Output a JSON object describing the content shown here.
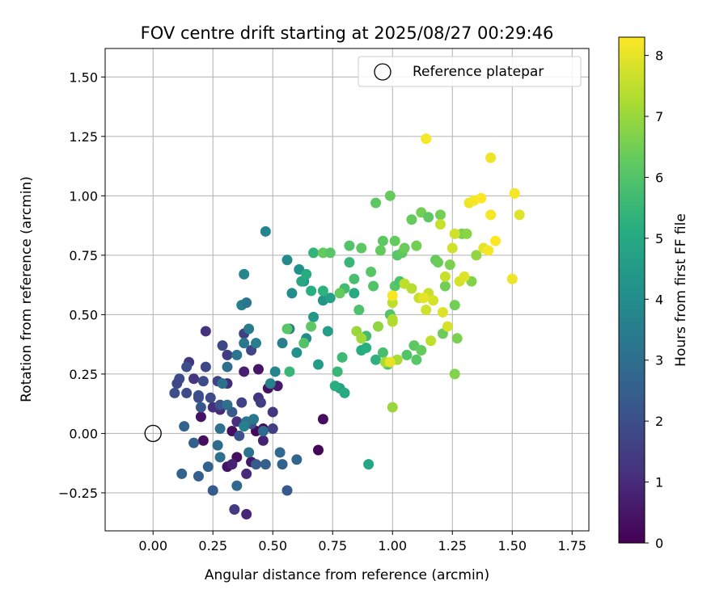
{
  "chart_data": {
    "type": "scatter",
    "title": "FOV centre drift starting at 2025/08/27 00:29:46",
    "xlabel": "Angular distance from reference (arcmin)",
    "ylabel": "Rotation from reference (arcmin)",
    "xlim": [
      -0.2,
      1.82
    ],
    "ylim": [
      -0.41,
      1.62
    ],
    "xticks": [
      0.0,
      0.25,
      0.5,
      0.75,
      1.0,
      1.25,
      1.5,
      1.75
    ],
    "xtick_labels": [
      "0.00",
      "0.25",
      "0.50",
      "0.75",
      "1.00",
      "1.25",
      "1.50",
      "1.75"
    ],
    "yticks": [
      -0.25,
      0.0,
      0.25,
      0.5,
      0.75,
      1.0,
      1.25,
      1.5
    ],
    "ytick_labels": [
      "−0.25",
      "0.00",
      "0.25",
      "0.50",
      "0.75",
      "1.00",
      "1.25",
      "1.50"
    ],
    "grid": true,
    "colormap": "viridis",
    "colorbar": {
      "label": "Hours from first FF file",
      "range": [
        0,
        8.3
      ],
      "ticks": [
        0,
        1,
        2,
        3,
        4,
        5,
        6,
        7,
        8
      ],
      "tick_labels": [
        "0",
        "1",
        "2",
        "3",
        "4",
        "5",
        "6",
        "7",
        "8"
      ]
    },
    "legend": {
      "placement": "top-right",
      "entries": [
        {
          "label": "Reference platepar",
          "marker": "open-circle"
        }
      ]
    },
    "reference_point": {
      "x": 0.0,
      "y": 0.0
    },
    "points": [
      [
        0.69,
        -0.07,
        0.1
      ],
      [
        0.71,
        0.06,
        0.3
      ],
      [
        0.48,
        0.19,
        0.4
      ],
      [
        0.46,
        0.02,
        0.3
      ],
      [
        0.43,
        0.01,
        0.2
      ],
      [
        0.41,
        -0.12,
        0.5
      ],
      [
        0.35,
        -0.1,
        0.3
      ],
      [
        0.33,
        0.01,
        0.3
      ],
      [
        0.31,
        -0.14,
        0.4
      ],
      [
        0.38,
        0.26,
        0.7
      ],
      [
        0.52,
        0.2,
        0.6
      ],
      [
        0.21,
        -0.03,
        0.3
      ],
      [
        0.2,
        0.07,
        0.4
      ],
      [
        0.44,
        0.27,
        0.5
      ],
      [
        0.46,
        -0.03,
        0.8
      ],
      [
        0.39,
        -0.34,
        0.9
      ],
      [
        0.39,
        -0.17,
        1.0
      ],
      [
        0.33,
        -0.13,
        0.8
      ],
      [
        0.28,
        0.1,
        1.0
      ],
      [
        0.31,
        0.21,
        1.0
      ],
      [
        0.25,
        0.11,
        1.1
      ],
      [
        0.35,
        0.05,
        1.1
      ],
      [
        0.44,
        0.15,
        1.2
      ],
      [
        0.5,
        0.09,
        1.3
      ],
      [
        0.22,
        0.43,
        1.2
      ],
      [
        0.17,
        0.23,
        1.3
      ],
      [
        0.15,
        0.3,
        1.3
      ],
      [
        0.34,
        -0.32,
        1.4
      ],
      [
        0.5,
        0.02,
        1.6
      ],
      [
        0.45,
        0.13,
        1.5
      ],
      [
        0.31,
        0.33,
        1.5
      ],
      [
        0.38,
        0.42,
        1.6
      ],
      [
        0.41,
        0.35,
        1.7
      ],
      [
        0.29,
        0.37,
        1.8
      ],
      [
        0.37,
        0.13,
        1.6
      ],
      [
        0.27,
        0.22,
        1.7
      ],
      [
        0.24,
        0.15,
        1.9
      ],
      [
        0.21,
        0.22,
        1.9
      ],
      [
        0.11,
        0.23,
        1.9
      ],
      [
        0.1,
        0.21,
        1.8
      ],
      [
        0.14,
        0.28,
        2.0
      ],
      [
        0.22,
        0.28,
        1.8
      ],
      [
        0.09,
        0.17,
        2.0
      ],
      [
        0.14,
        0.17,
        1.9
      ],
      [
        0.19,
        0.16,
        2.1
      ],
      [
        0.19,
        0.15,
        2.0
      ],
      [
        0.2,
        0.11,
        2.2
      ],
      [
        0.28,
        0.12,
        2.1
      ],
      [
        0.33,
        0.09,
        2.3
      ],
      [
        0.36,
        -0.01,
        2.1
      ],
      [
        0.41,
        0.04,
        2.2
      ],
      [
        0.43,
        -0.13,
        2.4
      ],
      [
        0.47,
        -0.13,
        2.5
      ],
      [
        0.56,
        -0.24,
        2.3
      ],
      [
        0.54,
        -0.13,
        2.6
      ],
      [
        0.6,
        -0.11,
        2.7
      ],
      [
        0.53,
        -0.08,
        2.8
      ],
      [
        0.46,
        0.01,
        2.9
      ],
      [
        0.25,
        -0.24,
        2.4
      ],
      [
        0.17,
        -0.04,
        2.5
      ],
      [
        0.13,
        0.03,
        2.7
      ],
      [
        0.12,
        -0.17,
        2.6
      ],
      [
        0.19,
        -0.18,
        2.5
      ],
      [
        0.23,
        -0.14,
        2.6
      ],
      [
        0.27,
        -0.05,
        2.9
      ],
      [
        0.28,
        -0.1,
        3.0
      ],
      [
        0.28,
        0.02,
        3.0
      ],
      [
        0.35,
        -0.22,
        2.8
      ],
      [
        0.4,
        -0.08,
        3.1
      ],
      [
        0.39,
        0.05,
        3.2
      ],
      [
        0.42,
        0.06,
        3.3
      ],
      [
        0.38,
        0.03,
        3.6
      ],
      [
        0.31,
        0.12,
        3.0
      ],
      [
        0.29,
        0.21,
        3.1
      ],
      [
        0.31,
        0.28,
        3.0
      ],
      [
        0.35,
        0.33,
        3.2
      ],
      [
        0.38,
        0.38,
        3.3
      ],
      [
        0.4,
        0.44,
        3.4
      ],
      [
        0.43,
        0.38,
        3.5
      ],
      [
        0.37,
        0.54,
        3.6
      ],
      [
        0.39,
        0.55,
        3.2
      ],
      [
        0.38,
        0.67,
        3.8
      ],
      [
        0.47,
        0.85,
        3.7
      ],
      [
        0.49,
        0.21,
        3.6
      ],
      [
        0.51,
        0.26,
        3.7
      ],
      [
        0.54,
        0.38,
        3.5
      ],
      [
        0.57,
        0.44,
        3.4
      ],
      [
        0.56,
        0.73,
        3.9
      ],
      [
        0.58,
        0.59,
        4.0
      ],
      [
        0.6,
        0.34,
        4.1
      ],
      [
        0.61,
        0.69,
        4.2
      ],
      [
        0.63,
        0.64,
        4.3
      ],
      [
        0.64,
        0.4,
        4.0
      ],
      [
        0.67,
        0.49,
        4.4
      ],
      [
        0.69,
        0.29,
        4.5
      ],
      [
        0.71,
        0.56,
        4.3
      ],
      [
        0.73,
        0.43,
        4.6
      ],
      [
        0.74,
        0.57,
        4.7
      ],
      [
        0.78,
        0.19,
        4.8
      ],
      [
        0.8,
        0.17,
        5.0
      ],
      [
        0.84,
        0.59,
        5.0
      ],
      [
        0.9,
        -0.13,
        4.9
      ],
      [
        0.87,
        0.35,
        5.1
      ],
      [
        0.89,
        0.36,
        5.2
      ],
      [
        0.93,
        0.31,
        5.3
      ],
      [
        0.62,
        0.64,
        4.9
      ],
      [
        0.64,
        0.67,
        5.1
      ],
      [
        0.66,
        0.6,
        5.2
      ],
      [
        0.67,
        0.76,
        5.4
      ],
      [
        0.71,
        0.6,
        5.3
      ],
      [
        0.76,
        0.2,
        5.2
      ],
      [
        0.77,
        0.26,
        5.5
      ],
      [
        0.79,
        0.32,
        5.6
      ],
      [
        0.8,
        0.61,
        5.7
      ],
      [
        0.82,
        0.72,
        5.5
      ],
      [
        0.84,
        0.65,
        5.8
      ],
      [
        0.86,
        0.52,
        5.9
      ],
      [
        0.89,
        0.41,
        5.7
      ],
      [
        0.92,
        0.62,
        6.0
      ],
      [
        0.96,
        0.34,
        5.8
      ],
      [
        0.98,
        0.29,
        5.9
      ],
      [
        0.99,
        0.5,
        6.0
      ],
      [
        1.01,
        0.62,
        6.1
      ],
      [
        1.03,
        0.64,
        5.9
      ],
      [
        1.06,
        0.33,
        6.0
      ],
      [
        1.09,
        0.37,
        6.2
      ],
      [
        1.1,
        0.31,
        6.1
      ],
      [
        1.12,
        0.35,
        6.3
      ],
      [
        0.57,
        0.26,
        5.5
      ],
      [
        0.56,
        0.44,
        6.1
      ],
      [
        0.63,
        0.38,
        6.0
      ],
      [
        0.66,
        0.45,
        6.2
      ],
      [
        0.71,
        0.76,
        6.3
      ],
      [
        0.74,
        0.76,
        6.1
      ],
      [
        0.78,
        0.59,
        6.3
      ],
      [
        0.82,
        0.79,
        6.0
      ],
      [
        0.87,
        0.78,
        6.2
      ],
      [
        0.91,
        0.68,
        6.1
      ],
      [
        0.93,
        0.97,
        6.2
      ],
      [
        0.95,
        0.77,
        6.3
      ],
      [
        0.96,
        0.81,
        6.2
      ],
      [
        0.99,
        1.0,
        6.3
      ],
      [
        1.01,
        0.81,
        6.3
      ],
      [
        1.02,
        0.75,
        6.1
      ],
      [
        1.04,
        0.76,
        6.2
      ],
      [
        1.05,
        0.78,
        6.4
      ],
      [
        1.08,
        0.9,
        6.3
      ],
      [
        1.1,
        0.79,
        6.5
      ],
      [
        1.12,
        0.93,
        6.5
      ],
      [
        1.15,
        0.91,
        6.2
      ],
      [
        1.18,
        0.73,
        6.3
      ],
      [
        1.19,
        0.72,
        6.4
      ],
      [
        1.2,
        0.92,
        6.5
      ],
      [
        1.21,
        0.42,
        6.4
      ],
      [
        1.22,
        0.62,
        6.5
      ],
      [
        1.24,
        0.71,
        6.6
      ],
      [
        1.26,
        0.54,
        6.5
      ],
      [
        1.27,
        0.4,
        6.6
      ],
      [
        1.26,
        0.25,
        6.7
      ],
      [
        1.29,
        0.84,
        6.6
      ],
      [
        1.31,
        0.84,
        6.8
      ],
      [
        1.33,
        0.64,
        6.7
      ],
      [
        1.35,
        0.75,
        6.9
      ],
      [
        0.85,
        0.43,
        7.0
      ],
      [
        0.87,
        0.4,
        7.1
      ],
      [
        0.94,
        0.45,
        6.9
      ],
      [
        0.97,
        0.3,
        7.2
      ],
      [
        1.0,
        0.11,
        7.0
      ],
      [
        1.0,
        0.47,
        7.4
      ],
      [
        1.0,
        0.48,
        7.3
      ],
      [
        1.0,
        0.55,
        7.5
      ],
      [
        1.02,
        0.31,
        7.2
      ],
      [
        1.05,
        0.63,
        7.5
      ],
      [
        1.08,
        0.61,
        7.4
      ],
      [
        1.11,
        0.57,
        7.6
      ],
      [
        1.14,
        0.52,
        7.7
      ],
      [
        1.15,
        0.59,
        7.6
      ],
      [
        1.16,
        0.39,
        7.5
      ],
      [
        1.17,
        0.56,
        7.8
      ],
      [
        1.2,
        0.88,
        7.6
      ],
      [
        1.21,
        0.51,
        7.9
      ],
      [
        1.22,
        0.66,
        7.6
      ],
      [
        1.23,
        0.45,
        7.8
      ],
      [
        1.25,
        0.78,
        7.7
      ],
      [
        1.26,
        0.84,
        7.7
      ],
      [
        1.28,
        0.64,
        7.8
      ],
      [
        1.3,
        0.66,
        7.9
      ],
      [
        1.32,
        0.97,
        8.1
      ],
      [
        1.34,
        0.98,
        8.2
      ],
      [
        1.38,
        0.78,
        8.0
      ],
      [
        1.4,
        0.77,
        8.2
      ],
      [
        1.41,
        0.92,
        8.2
      ],
      [
        1.43,
        0.81,
        8.3
      ],
      [
        1.41,
        1.16,
        8.1
      ],
      [
        1.51,
        1.01,
        8.2
      ],
      [
        1.5,
        0.65,
        8.1
      ],
      [
        1.53,
        0.92,
        7.9
      ],
      [
        1.14,
        1.24,
        8.2
      ],
      [
        1.13,
        0.57,
        8.0
      ],
      [
        1.0,
        0.58,
        8.2
      ],
      [
        0.99,
        0.3,
        8.0
      ],
      [
        1.37,
        0.99,
        8.3
      ]
    ]
  }
}
